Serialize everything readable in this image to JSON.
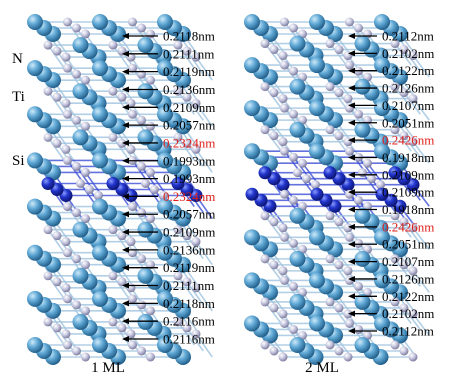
{
  "element_labels": {
    "nitrogen": "N",
    "titanium": "Ti",
    "silicon": "Si"
  },
  "colors": {
    "ti_atom": "#5ea9d6",
    "n_atom": "#c8c8df",
    "si_atom": "#1d2fc2",
    "bond_ti": "#9fc4df",
    "bond_si": "#3d4fd6",
    "normal_text": "#000000",
    "highlight_text": "#e0201b"
  },
  "panels": [
    {
      "caption": "1 ML",
      "si_layers": 1,
      "distances": [
        {
          "text": "0.2118nm",
          "highlight": false
        },
        {
          "text": "0.2111nm",
          "highlight": false
        },
        {
          "text": "0.2119nm",
          "highlight": false
        },
        {
          "text": "0.2136nm",
          "highlight": false
        },
        {
          "text": "0.2109nm",
          "highlight": false
        },
        {
          "text": "0.2057nm",
          "highlight": false
        },
        {
          "text": "0.2324nm",
          "highlight": true
        },
        {
          "text": "0.1993nm",
          "highlight": false
        },
        {
          "text": "0.1993nm",
          "highlight": false
        },
        {
          "text": "0.2324nm",
          "highlight": true
        },
        {
          "text": "0.2057nm",
          "highlight": false
        },
        {
          "text": "0.2109nm",
          "highlight": false
        },
        {
          "text": "0.2136nm",
          "highlight": false
        },
        {
          "text": "0.2119nm",
          "highlight": false
        },
        {
          "text": "0.2111nm",
          "highlight": false
        },
        {
          "text": "0.2118nm",
          "highlight": false
        },
        {
          "text": "0.2116nm",
          "highlight": false
        },
        {
          "text": "0.2116nm",
          "highlight": false
        }
      ]
    },
    {
      "caption": "2 ML",
      "si_layers": 2,
      "distances": [
        {
          "text": "0.2112nm",
          "highlight": false
        },
        {
          "text": "0.2102nm",
          "highlight": false
        },
        {
          "text": "0.2122nm",
          "highlight": false
        },
        {
          "text": "0.2126nm",
          "highlight": false
        },
        {
          "text": "0.2107nm",
          "highlight": false
        },
        {
          "text": "0.2051nm",
          "highlight": false
        },
        {
          "text": "0.2426nm",
          "highlight": true
        },
        {
          "text": "0.1918nm",
          "highlight": false
        },
        {
          "text": "0.2109nm",
          "highlight": false
        },
        {
          "text": "0.2109nm",
          "highlight": false
        },
        {
          "text": "0.1918nm",
          "highlight": false
        },
        {
          "text": "0.2426nm",
          "highlight": true
        },
        {
          "text": "0.2051nm",
          "highlight": false
        },
        {
          "text": "0.2107nm",
          "highlight": false
        },
        {
          "text": "0.2126nm",
          "highlight": false
        },
        {
          "text": "0.2122nm",
          "highlight": false
        },
        {
          "text": "0.2102nm",
          "highlight": false
        },
        {
          "text": "0.2112nm",
          "highlight": false
        }
      ]
    }
  ]
}
